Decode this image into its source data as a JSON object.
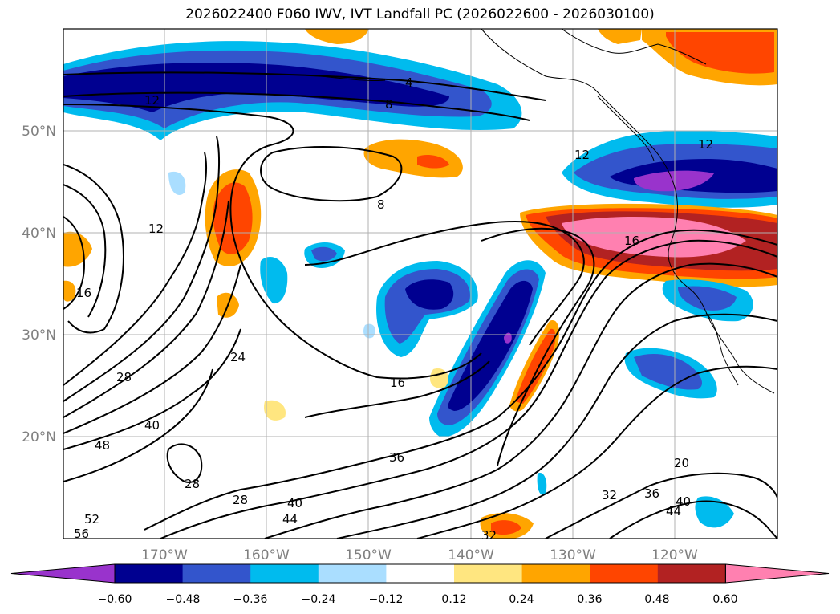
{
  "title": "2026022400 F060 IWV, IVT Landfall PC (2026022600 - 2026030100)",
  "lon_labels": [
    "170°W",
    "160°W",
    "150°W",
    "140°W",
    "130°W",
    "120°W"
  ],
  "lat_labels": [
    "50°N",
    "40°N",
    "30°N",
    "20°N"
  ],
  "colorbar": {
    "tick_labels": [
      "−0.60",
      "−0.48",
      "−0.36",
      "−0.24",
      "−0.12",
      "0.12",
      "0.24",
      "0.36",
      "0.48",
      "0.60"
    ],
    "colors": [
      "#9933cc",
      "#000090",
      "#3355cc",
      "#00bbee",
      "#aadeff",
      "#ffffff",
      "#ffe680",
      "#ffa500",
      "#ff4500",
      "#b22222",
      "#ff80b0"
    ]
  },
  "contour_labels": [
    "4",
    "8",
    "12",
    "8",
    "12",
    "12",
    "12",
    "16",
    "16",
    "16",
    "20",
    "24",
    "28",
    "28",
    "28",
    "32",
    "32",
    "36",
    "36",
    "40",
    "40",
    "40",
    "44",
    "44",
    "48",
    "52",
    "56"
  ]
}
